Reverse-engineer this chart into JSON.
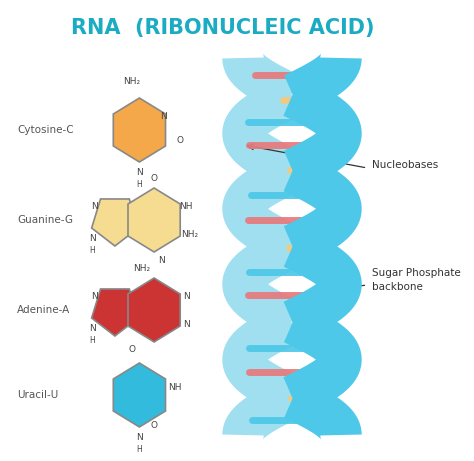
{
  "title": "RNA  (RIBONUCLEIC ACID)",
  "title_color": "#1bacc4",
  "title_fontsize": 15,
  "background_color": "#ffffff",
  "labels": [
    "Cytosine-C",
    "Guanine-G",
    "Adenine-A",
    "Uracil-U"
  ],
  "label_color": "#555555",
  "annotation_nucleobases": "Nucleobases",
  "annotation_sugar": "Sugar Phosphate\nbackbone",
  "helix_color": "#4dc8e8",
  "helix_color_back": "#a0dff0",
  "rung_colors": [
    "#e8797a",
    "#f5c97a",
    "#4dc8e8",
    "#f5b06a",
    "#e8a0b0"
  ],
  "cytosine_color": "#f5a84a",
  "guanine_color": "#f5dc90",
  "adenine_color": "#cc3333",
  "uracil_color": "#33bbdd",
  "edge_color": "#888888",
  "text_color": "#444444"
}
